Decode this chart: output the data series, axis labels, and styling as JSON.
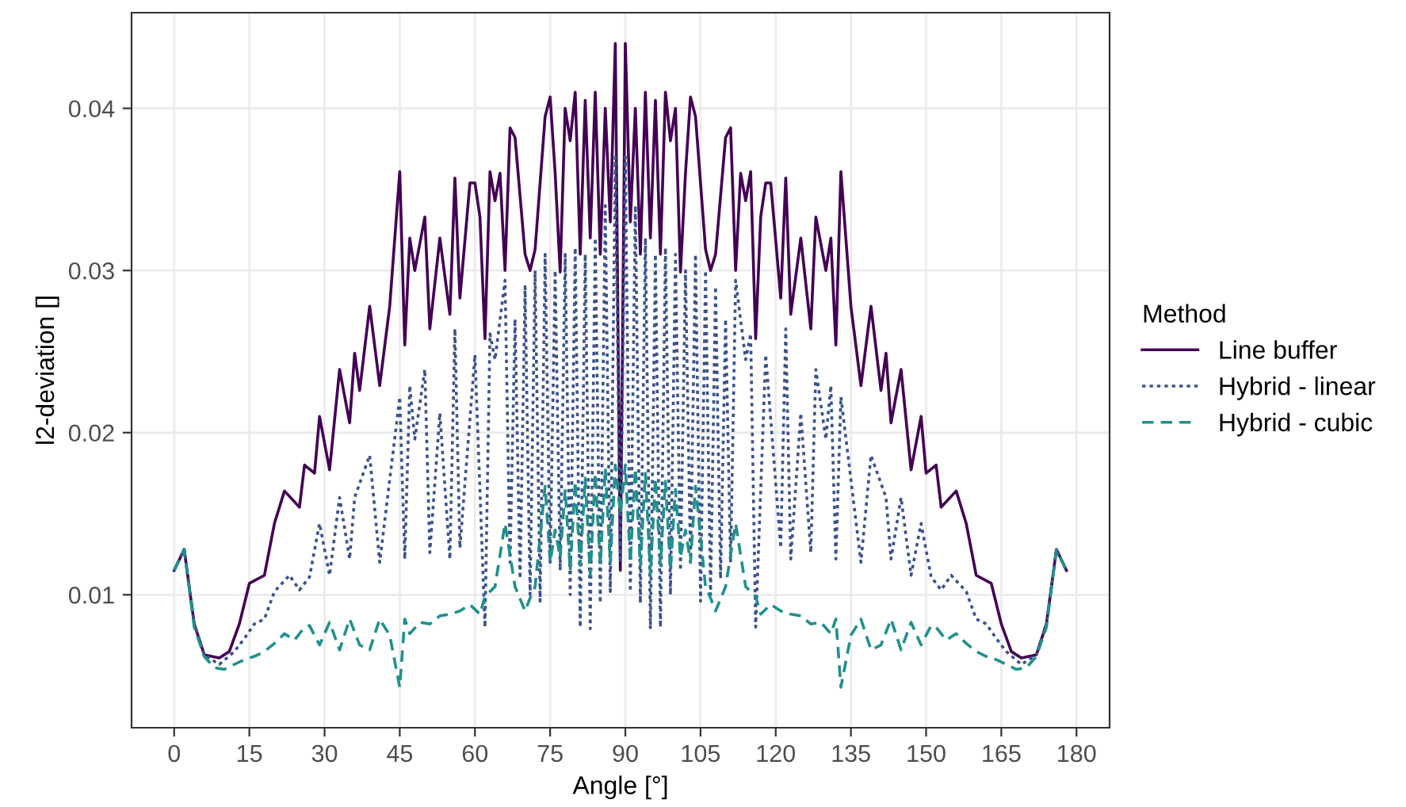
{
  "chart_data": {
    "type": "line",
    "xlabel": "Angle [°]",
    "ylabel": "l2-deviation []",
    "legend_title": "Method",
    "legend": "right",
    "grid": true,
    "xlim": [
      -8.5,
      186.6
    ],
    "ylim": [
      0.0018,
      0.0459
    ],
    "xticks": [
      0,
      15,
      30,
      45,
      60,
      75,
      90,
      105,
      120,
      135,
      150,
      165,
      180
    ],
    "yticks": [
      0.01,
      0.02,
      0.03,
      0.04
    ],
    "series": [
      {
        "name": "Line buffer",
        "color": "#440154",
        "line_style": "solid",
        "x": [
          0,
          2,
          4,
          6,
          9,
          11,
          13,
          15,
          18,
          20,
          22,
          25,
          26,
          28,
          29,
          31,
          33,
          35,
          36,
          37,
          39,
          41,
          43,
          45,
          46,
          47,
          48,
          50,
          51,
          53,
          55,
          56,
          57,
          59,
          60,
          61,
          62,
          63,
          64,
          65,
          66,
          67,
          68,
          70,
          71,
          72,
          74,
          75,
          76,
          77,
          78,
          79,
          80,
          81,
          82,
          83,
          84,
          85,
          86,
          87,
          88,
          89,
          90,
          91,
          92,
          93,
          94,
          95,
          96,
          97,
          98,
          99,
          100,
          101,
          102,
          103,
          104,
          106,
          107,
          108,
          110,
          111,
          112,
          113,
          114,
          115,
          116,
          117,
          118,
          119,
          121,
          122,
          123,
          125,
          127,
          128,
          130,
          131,
          132,
          133,
          135,
          137,
          139,
          141,
          142,
          143,
          145,
          147,
          149,
          150,
          152,
          153,
          156,
          158,
          160,
          163,
          165,
          167,
          169,
          172,
          174,
          176,
          178
        ],
        "values": [
          0.0115,
          0.0128,
          0.0082,
          0.0063,
          0.0061,
          0.0065,
          0.0082,
          0.0107,
          0.0112,
          0.0144,
          0.0164,
          0.0154,
          0.018,
          0.0175,
          0.021,
          0.0177,
          0.0239,
          0.0206,
          0.0249,
          0.0226,
          0.0278,
          0.0229,
          0.0278,
          0.0361,
          0.0254,
          0.032,
          0.03,
          0.0333,
          0.0264,
          0.032,
          0.0273,
          0.0357,
          0.0283,
          0.0354,
          0.0354,
          0.0333,
          0.0258,
          0.0361,
          0.0343,
          0.036,
          0.03,
          0.0388,
          0.0382,
          0.031,
          0.03,
          0.0313,
          0.0395,
          0.0407,
          0.036,
          0.0299,
          0.04,
          0.038,
          0.041,
          0.031,
          0.0405,
          0.032,
          0.041,
          0.031,
          0.04,
          0.033,
          0.044,
          0.0115,
          0.044,
          0.033,
          0.04,
          0.031,
          0.041,
          0.032,
          0.0405,
          0.031,
          0.041,
          0.038,
          0.04,
          0.0299,
          0.036,
          0.0407,
          0.0395,
          0.0313,
          0.03,
          0.031,
          0.0382,
          0.0388,
          0.03,
          0.036,
          0.0343,
          0.0361,
          0.0258,
          0.0333,
          0.0354,
          0.0354,
          0.0283,
          0.0357,
          0.0273,
          0.032,
          0.0264,
          0.0333,
          0.03,
          0.032,
          0.0254,
          0.0361,
          0.0278,
          0.0229,
          0.0278,
          0.0226,
          0.0249,
          0.0206,
          0.0239,
          0.0177,
          0.021,
          0.0175,
          0.018,
          0.0154,
          0.0164,
          0.0144,
          0.0112,
          0.0107,
          0.0082,
          0.0065,
          0.0061,
          0.0063,
          0.0082,
          0.0128,
          0.0115
        ]
      },
      {
        "name": "Hybrid - linear",
        "color": "#3b528b",
        "line_style": "dotted",
        "x": [
          0,
          2,
          4,
          6,
          9,
          12,
          14,
          16,
          18,
          20,
          23,
          25,
          27,
          29,
          31,
          33,
          35,
          36,
          39,
          41,
          45,
          46,
          47,
          48,
          50,
          51,
          53,
          55,
          56,
          57,
          60,
          62,
          63,
          64,
          66,
          67,
          68,
          69,
          70,
          71,
          72,
          73,
          74,
          75,
          76,
          77,
          78,
          79,
          80,
          81,
          82,
          83,
          84,
          85,
          86,
          87,
          88,
          89,
          90,
          91,
          92,
          93,
          94,
          95,
          96,
          97,
          98,
          99,
          100,
          101,
          102,
          103,
          104,
          105,
          106,
          107,
          108,
          109,
          110,
          111,
          112,
          114,
          115,
          116,
          118,
          121,
          122,
          123,
          125,
          127,
          128,
          130,
          131,
          132,
          133,
          137,
          139,
          142,
          143,
          145,
          147,
          149,
          151,
          153,
          155,
          158,
          160,
          162,
          164,
          166,
          169,
          172,
          174,
          176,
          178
        ],
        "values": [
          0.0115,
          0.0128,
          0.0082,
          0.0063,
          0.0057,
          0.0065,
          0.0073,
          0.0082,
          0.0085,
          0.0102,
          0.0112,
          0.0103,
          0.0111,
          0.0144,
          0.0112,
          0.016,
          0.0122,
          0.016,
          0.0186,
          0.012,
          0.0222,
          0.0122,
          0.0229,
          0.0196,
          0.0239,
          0.0126,
          0.0212,
          0.0122,
          0.0264,
          0.0129,
          0.0248,
          0.008,
          0.0261,
          0.0245,
          0.0294,
          0.012,
          0.027,
          0.011,
          0.029,
          0.01,
          0.03,
          0.0096,
          0.031,
          0.012,
          0.03,
          0.0115,
          0.031,
          0.01,
          0.0314,
          0.008,
          0.031,
          0.0079,
          0.032,
          0.0095,
          0.034,
          0.0102,
          0.037,
          0.012,
          0.037,
          0.0102,
          0.034,
          0.0095,
          0.032,
          0.0079,
          0.031,
          0.008,
          0.0314,
          0.01,
          0.031,
          0.0115,
          0.03,
          0.012,
          0.031,
          0.0096,
          0.03,
          0.01,
          0.029,
          0.011,
          0.027,
          0.012,
          0.0294,
          0.0245,
          0.0261,
          0.008,
          0.0248,
          0.0129,
          0.0264,
          0.0122,
          0.0212,
          0.0126,
          0.0239,
          0.0196,
          0.0229,
          0.0122,
          0.0222,
          0.012,
          0.0186,
          0.016,
          0.0122,
          0.016,
          0.0112,
          0.0144,
          0.0111,
          0.0103,
          0.0112,
          0.0102,
          0.0085,
          0.0082,
          0.0073,
          0.0065,
          0.0057,
          0.0063,
          0.0082,
          0.0128,
          0.0115
        ]
      },
      {
        "name": "Hybrid - cubic",
        "color": "#21908c",
        "line_style": "dashed",
        "x": [
          0,
          2,
          4,
          6,
          8,
          10,
          12,
          14,
          16,
          18,
          20,
          22,
          24,
          26,
          27,
          29,
          31,
          33,
          35,
          37,
          39,
          41,
          43,
          45,
          46,
          47,
          49,
          51,
          53,
          55,
          57,
          59,
          61,
          62,
          64,
          66,
          68,
          70,
          71,
          72,
          74,
          75,
          76,
          77,
          78,
          79,
          80,
          81,
          82,
          83,
          84,
          85,
          86,
          87,
          88,
          89,
          90,
          91,
          92,
          93,
          94,
          95,
          96,
          97,
          98,
          99,
          100,
          101,
          102,
          103,
          104,
          106,
          107,
          108,
          110,
          112,
          114,
          116,
          117,
          119,
          121,
          123,
          125,
          127,
          129,
          131,
          132,
          133,
          135,
          137,
          139,
          141,
          143,
          145,
          147,
          149,
          151,
          152,
          154,
          156,
          158,
          160,
          162,
          164,
          166,
          168,
          170,
          172,
          174,
          176,
          178
        ],
        "values": [
          0.0115,
          0.0128,
          0.008,
          0.0062,
          0.0055,
          0.0054,
          0.0057,
          0.006,
          0.0062,
          0.0065,
          0.007,
          0.0076,
          0.0072,
          0.008,
          0.0081,
          0.0069,
          0.0083,
          0.0066,
          0.0085,
          0.0069,
          0.0066,
          0.0085,
          0.0075,
          0.0043,
          0.0085,
          0.0076,
          0.0083,
          0.0082,
          0.0087,
          0.0088,
          0.009,
          0.0094,
          0.0088,
          0.0099,
          0.0105,
          0.0144,
          0.0105,
          0.009,
          0.0098,
          0.0105,
          0.0167,
          0.012,
          0.014,
          0.0123,
          0.0165,
          0.0115,
          0.017,
          0.0118,
          0.0172,
          0.0112,
          0.0175,
          0.0118,
          0.0178,
          0.012,
          0.018,
          0.015,
          0.018,
          0.012,
          0.0178,
          0.0118,
          0.0175,
          0.0112,
          0.0172,
          0.0118,
          0.017,
          0.0115,
          0.0165,
          0.0123,
          0.014,
          0.012,
          0.0167,
          0.0105,
          0.0098,
          0.009,
          0.0105,
          0.0144,
          0.0105,
          0.0099,
          0.0088,
          0.0094,
          0.009,
          0.0088,
          0.0087,
          0.0082,
          0.0083,
          0.0076,
          0.0085,
          0.0043,
          0.0075,
          0.0085,
          0.0066,
          0.0069,
          0.0085,
          0.0066,
          0.0083,
          0.0069,
          0.0081,
          0.008,
          0.0072,
          0.0076,
          0.007,
          0.0065,
          0.0062,
          0.006,
          0.0057,
          0.0054,
          0.0055,
          0.0062,
          0.008,
          0.0128,
          0.0115
        ]
      }
    ]
  }
}
